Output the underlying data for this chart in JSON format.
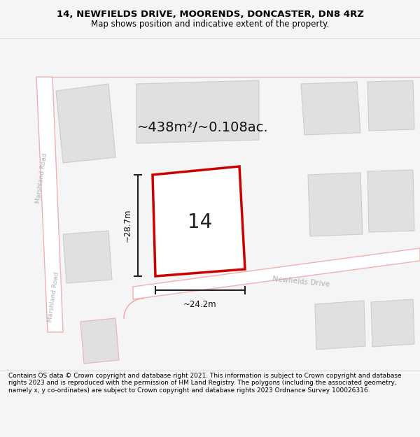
{
  "title_line1": "14, NEWFIELDS DRIVE, MOORENDS, DONCASTER, DN8 4RZ",
  "title_line2": "Map shows position and indicative extent of the property.",
  "footer_text": "Contains OS data © Crown copyright and database right 2021. This information is subject to Crown copyright and database rights 2023 and is reproduced with the permission of HM Land Registry. The polygons (including the associated geometry, namely x, y co-ordinates) are subject to Crown copyright and database rights 2023 Ordnance Survey 100026316.",
  "background_color": "#f5f5f5",
  "map_bg": "#ffffff",
  "road_color": "#f0b0b0",
  "building_fill": "#e0e0e0",
  "building_edge": "#cccccc",
  "subject_fill": "#ffffff",
  "subject_edge": "#cc0000",
  "road_label_color": "#b0b0b0",
  "area_text": "~438m²/~0.108ac.",
  "number_text": "14",
  "dim_width": "~24.2m",
  "dim_height": "~28.7m",
  "marshland_road_label": "Marshland Road",
  "newfields_drive_label": "Newfields Drive",
  "title_fontsize": 9.5,
  "subtitle_fontsize": 8.5,
  "footer_fontsize": 6.5
}
